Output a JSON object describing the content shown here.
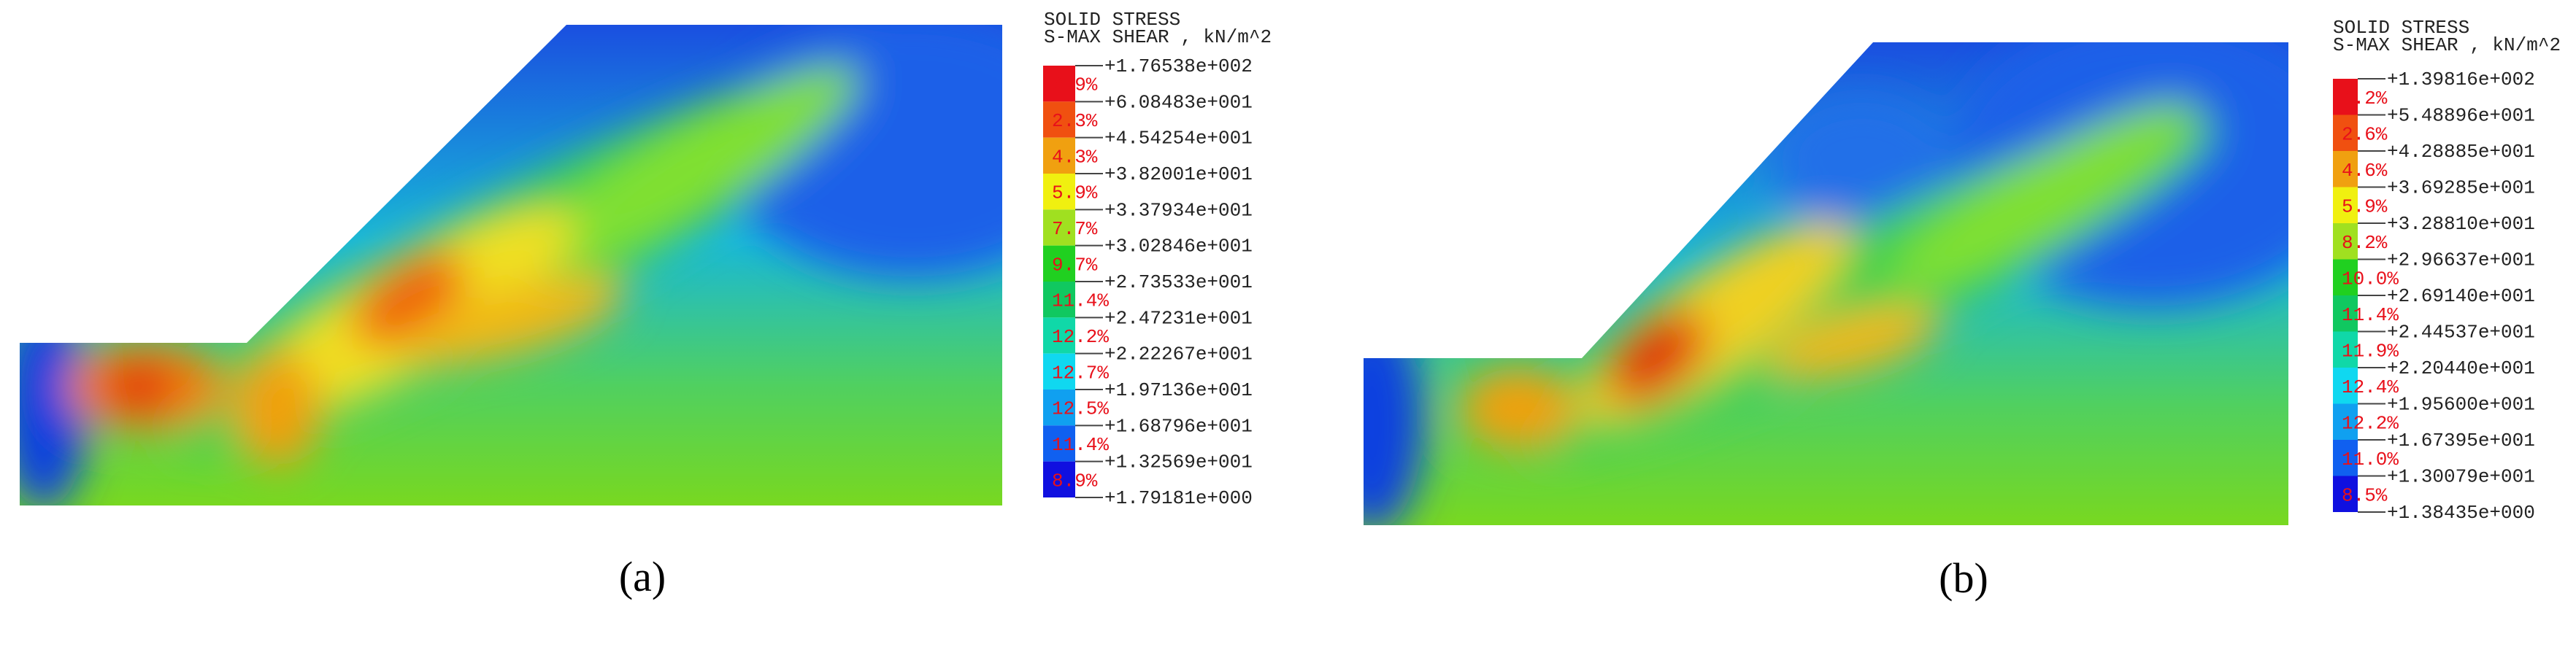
{
  "panels": [
    {
      "caption": "(a)",
      "legend": {
        "title": [
          "SOLID STRESS",
          "S-MAX SHEAR , kN/m^2"
        ],
        "percentages": [
          "0.9%",
          "2.3%",
          "4.3%",
          "5.9%",
          "7.7%",
          "9.7%",
          "11.4%",
          "12.2%",
          "12.7%",
          "12.5%",
          "11.4%",
          "8.9%"
        ],
        "levels": [
          "+1.76538e+002",
          "+6.08483e+001",
          "+4.54254e+001",
          "+3.82001e+001",
          "+3.37934e+001",
          "+3.02846e+001",
          "+2.73533e+001",
          "+2.47231e+001",
          "+2.22267e+001",
          "+1.97136e+001",
          "+1.68796e+001",
          "+1.32569e+001",
          "+1.79181e+000"
        ]
      }
    },
    {
      "caption": "(b)",
      "legend": {
        "title": [
          "SOLID STRESS",
          "S-MAX SHEAR , kN/m^2"
        ],
        "percentages": [
          "1.2%",
          "2.6%",
          "4.6%",
          "5.9%",
          "8.2%",
          "10.0%",
          "11.4%",
          "11.9%",
          "12.4%",
          "12.2%",
          "11.0%",
          "8.5%"
        ],
        "levels": [
          "+1.39816e+002",
          "+5.48896e+001",
          "+4.28885e+001",
          "+3.69285e+001",
          "+3.28810e+001",
          "+2.96637e+001",
          "+2.69140e+001",
          "+2.44537e+001",
          "+2.20440e+001",
          "+1.95600e+001",
          "+1.67395e+001",
          "+1.30079e+001",
          "+1.38435e+000"
        ]
      }
    }
  ]
}
